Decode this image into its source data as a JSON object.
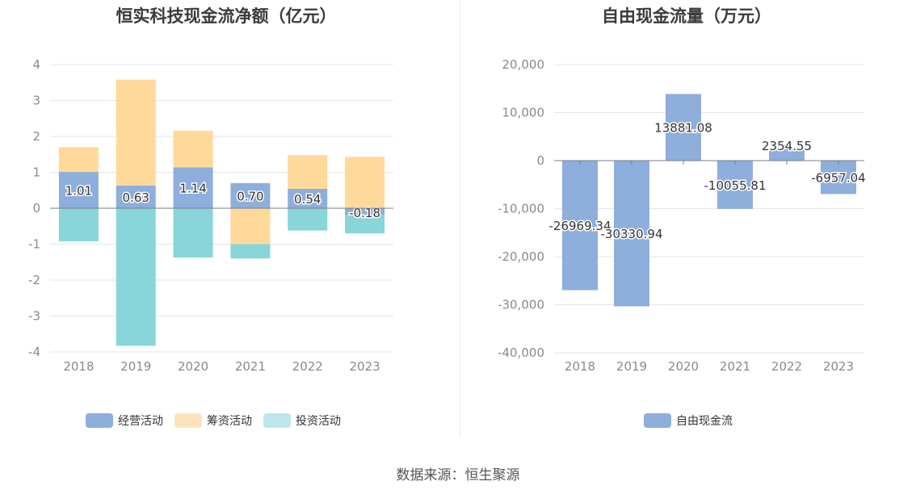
{
  "source_label": "数据来源：恒生聚源",
  "chart_data": [
    {
      "type": "bar",
      "stacked": true,
      "title": "恒实科技现金流净额（亿元）",
      "categories": [
        "2018",
        "2019",
        "2020",
        "2021",
        "2022",
        "2023"
      ],
      "ylim": [
        -4,
        4
      ],
      "yticks": [
        4,
        3,
        2,
        1,
        0,
        -1,
        -2,
        -3,
        -4
      ],
      "grid": true,
      "legend_position": "bottom",
      "series": [
        {
          "name": "经营活动",
          "color": "#8eaedc",
          "values": [
            1.01,
            0.63,
            1.14,
            0.7,
            0.54,
            -0.18
          ]
        },
        {
          "name": "筹资活动",
          "color": "#fed99a",
          "values": [
            0.69,
            2.95,
            1.02,
            -1.0,
            0.94,
            1.43
          ]
        },
        {
          "name": "投资活动",
          "color": "#88d5da",
          "values": [
            -0.92,
            -3.83,
            -1.37,
            -0.4,
            -0.62,
            -0.52
          ]
        }
      ],
      "data_labels": [
        "1.01",
        "0.63",
        "1.14",
        "0.70",
        "0.54",
        "-0.18"
      ],
      "legend_colors": [
        "#8eaedc",
        "#fde3bd",
        "#bde7ea"
      ]
    },
    {
      "type": "bar",
      "title": "自由现金流量（万元）",
      "categories": [
        "2018",
        "2019",
        "2020",
        "2021",
        "2022",
        "2023"
      ],
      "ylim": [
        -40000,
        20000
      ],
      "yticks": [
        "20,000",
        "10,000",
        "0",
        "-10,000",
        "-20,000",
        "-30,000",
        "-40,000"
      ],
      "ytick_values": [
        20000,
        10000,
        0,
        -10000,
        -20000,
        -30000,
        -40000
      ],
      "grid": true,
      "legend_position": "bottom",
      "series": [
        {
          "name": "自由现金流",
          "color": "#8eaedc",
          "values": [
            -26969.34,
            -30330.94,
            13881.08,
            -10055.81,
            2354.55,
            -6957.04
          ]
        }
      ],
      "data_labels": [
        "-26969.34",
        "-30330.94",
        "13881.08",
        "-10055.81",
        "2354.55",
        "-6957.04"
      ]
    }
  ]
}
